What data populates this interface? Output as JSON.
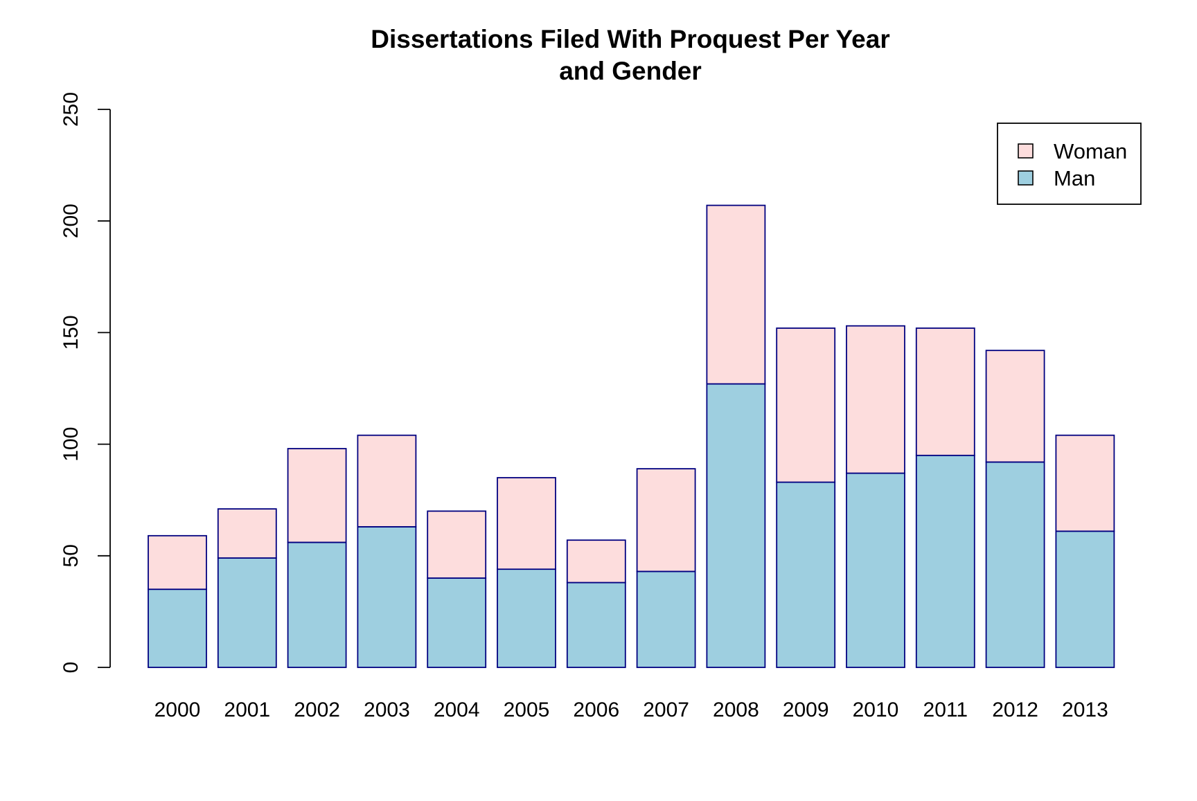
{
  "chart_data": {
    "type": "bar",
    "stacked": true,
    "title": "Dissertations Filed With Proquest Per Year",
    "subtitle": "and Gender",
    "xlabel": "",
    "ylabel": "",
    "ylim": [
      0,
      250
    ],
    "yticks": [
      0,
      50,
      100,
      150,
      200,
      250
    ],
    "grid": false,
    "legend_position": "top-right",
    "categories": [
      "2000",
      "2001",
      "2002",
      "2003",
      "2004",
      "2005",
      "2006",
      "2007",
      "2008",
      "2009",
      "2010",
      "2011",
      "2012",
      "2013"
    ],
    "series": [
      {
        "name": "Man",
        "color": "#9ecfe0",
        "values": [
          35,
          49,
          56,
          63,
          40,
          44,
          38,
          43,
          127,
          83,
          87,
          95,
          92,
          61
        ]
      },
      {
        "name": "Woman",
        "color": "#fddddd",
        "values": [
          24,
          22,
          42,
          41,
          30,
          41,
          19,
          46,
          80,
          69,
          66,
          57,
          50,
          43
        ]
      }
    ],
    "legend_order": [
      "Woman",
      "Man"
    ],
    "bar_border_color": "#000080",
    "axis_color": "#000000"
  }
}
